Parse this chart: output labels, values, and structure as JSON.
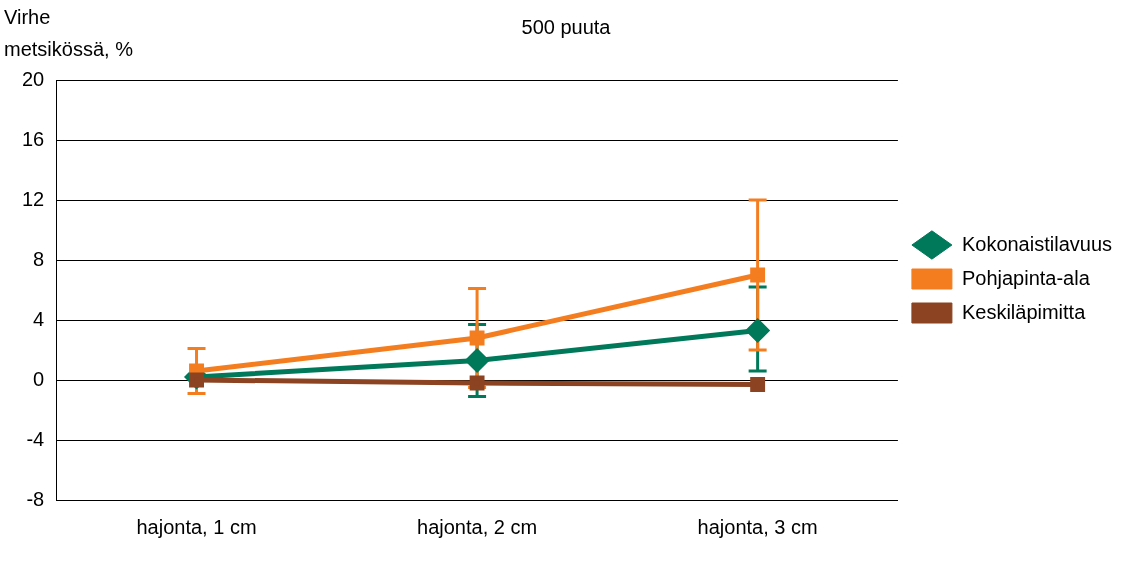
{
  "chart_data": {
    "type": "line",
    "title": "500 puuta",
    "ylabel": "Virhe metsikössä, %",
    "categories": [
      "hajonta, 1 cm",
      "hajonta, 2 cm",
      "hajonta, 3 cm"
    ],
    "series": [
      {
        "name": "Kokonaistilavuus",
        "color": "#00795a",
        "marker": "diamond",
        "values": [
          0.2,
          1.3,
          3.3
        ],
        "errors": [
          null,
          2.4,
          [
            0.6,
            6.2
          ]
        ]
      },
      {
        "name": "Pohjapinta-ala",
        "color": "#f47d20",
        "marker": "square",
        "values": [
          0.6,
          2.8,
          7.0
        ],
        "errors": [
          1.5,
          3.3,
          5.0
        ]
      },
      {
        "name": "Keskiläpimitta",
        "color": "#8b4321",
        "marker": "square",
        "values": [
          0,
          -0.2,
          -0.3
        ]
      }
    ],
    "ylim": [
      -8,
      20
    ],
    "yticks": [
      -8,
      -4,
      0,
      4,
      8,
      12,
      16,
      20
    ],
    "grid": "y",
    "legend": "right"
  }
}
